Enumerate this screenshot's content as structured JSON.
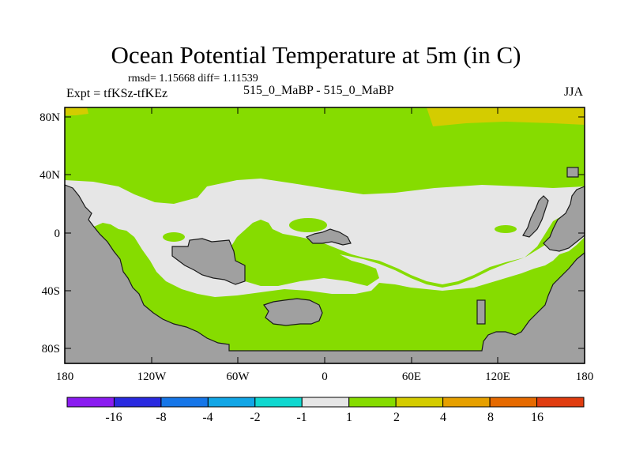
{
  "title": "Ocean Potential Temperature at 5m (in C)",
  "stats": "rmsd= 1.15668 diff= 1.11539",
  "expt": "Expt = tfKSz-tfKEz",
  "case": "515_0_MaBP - 515_0_MaBP",
  "season": "JJA",
  "axes": {
    "lat_labels": [
      "80N",
      "40N",
      "0",
      "40S",
      "80S"
    ],
    "lon_labels": [
      "180",
      "120W",
      "60W",
      "0",
      "60E",
      "120E",
      "180"
    ]
  },
  "colorbar": {
    "labels": [
      "-16",
      "-8",
      "-4",
      "-2",
      "-1",
      "1",
      "2",
      "4",
      "8",
      "16"
    ],
    "colors": [
      "#8a1cf0",
      "#2a2ae0",
      "#1676e8",
      "#12a6e6",
      "#10d8d0",
      "#e6e6e6",
      "#86dc00",
      "#d4cc00",
      "#e6a000",
      "#e66a00",
      "#e03c10"
    ]
  },
  "colors": {
    "land": "#a0a0a0",
    "near_zero": "#e6e6e6",
    "one_to_two": "#86dc00",
    "two_to_four": "#d4cc00"
  }
}
